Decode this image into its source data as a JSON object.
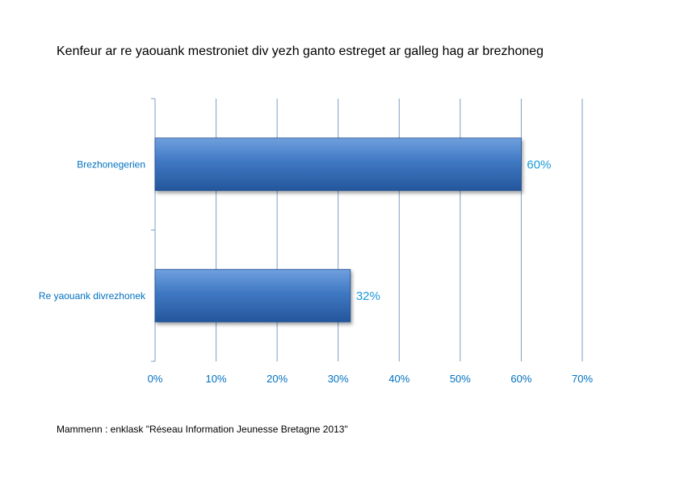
{
  "chart_data": {
    "type": "bar",
    "orientation": "horizontal",
    "title": "Kenfeur ar re yaouank mestroniet div yezh ganto estreget ar galleg hag ar brezhoneg",
    "categories": [
      "Brezhonegerien",
      "Re yaouank divrezhonek"
    ],
    "values": [
      60,
      32
    ],
    "data_labels": [
      "60%",
      "32%"
    ],
    "xlim": [
      0,
      70
    ],
    "xticks": [
      "0%",
      "10%",
      "20%",
      "30%",
      "40%",
      "50%",
      "60%",
      "70%"
    ],
    "grid": true,
    "legend": "none",
    "bar_color": "#3a74bd"
  },
  "source_note": "Mammenn : enklask \"Réseau Information Jeunesse Bretagne 2013\""
}
